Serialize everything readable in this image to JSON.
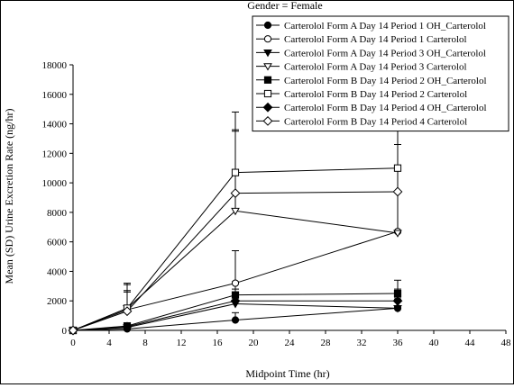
{
  "chart_data": {
    "type": "line",
    "title": "Gender = Female",
    "xlabel": "Midpoint Time (hr)",
    "ylabel": "Mean (SD) Urine Excretion Rate (ng/hr)",
    "xlim": [
      0,
      48
    ],
    "ylim": [
      0,
      18000
    ],
    "xticks": [
      0,
      4,
      8,
      12,
      16,
      20,
      24,
      28,
      32,
      36,
      40,
      44,
      48
    ],
    "yticks": [
      0,
      2000,
      4000,
      6000,
      8000,
      10000,
      12000,
      14000,
      16000,
      18000
    ],
    "grid": false,
    "legend_position": "top-right",
    "x": [
      0,
      6,
      18,
      36
    ],
    "series": [
      {
        "name": "Carterolol Form A  Day 14 Period 1 OH_Carterolol",
        "marker": "circle-filled",
        "values": [
          0,
          100,
          700,
          1500
        ],
        "sd": [
          0,
          80,
          500,
          700
        ]
      },
      {
        "name": "Carterolol Form A  Day 14 Period 1 Carterolol",
        "marker": "circle-open",
        "values": [
          0,
          1400,
          3200,
          6700
        ],
        "sd": [
          0,
          1200,
          2200,
          8000
        ]
      },
      {
        "name": "Carterolol Form A  Day 14 Period 3 OH_Carterolol",
        "marker": "triangle-filled",
        "values": [
          0,
          200,
          1800,
          1500
        ],
        "sd": [
          0,
          150,
          700,
          600
        ]
      },
      {
        "name": "Carterolol Form A  Day 14 Period 3 Carterolol",
        "marker": "triangle-open",
        "values": [
          0,
          1500,
          8100,
          6600
        ],
        "sd": [
          0,
          1600,
          5400,
          6000
        ]
      },
      {
        "name": "Carterolol Form B  Day 14 Period 2 OH_Carterolol",
        "marker": "square-filled",
        "values": [
          0,
          300,
          2400,
          2500
        ],
        "sd": [
          0,
          200,
          900,
          900
        ]
      },
      {
        "name": "Carterolol Form B  Day 14 Period 2 Carterolol",
        "marker": "square-open",
        "values": [
          0,
          1500,
          10700,
          11000
        ],
        "sd": [
          0,
          1700,
          4100,
          4800
        ]
      },
      {
        "name": "Carterolol Form B  Day 14 Period 4 OH_Carterolol",
        "marker": "diamond-filled",
        "values": [
          0,
          250,
          2000,
          2000
        ],
        "sd": [
          0,
          200,
          800,
          800
        ]
      },
      {
        "name": "Carterolol Form B  Day 14 Period 4 Carterolol",
        "marker": "diamond-open",
        "values": [
          0,
          1300,
          9300,
          9400
        ],
        "sd": [
          0,
          1400,
          4300,
          4700
        ]
      }
    ]
  }
}
